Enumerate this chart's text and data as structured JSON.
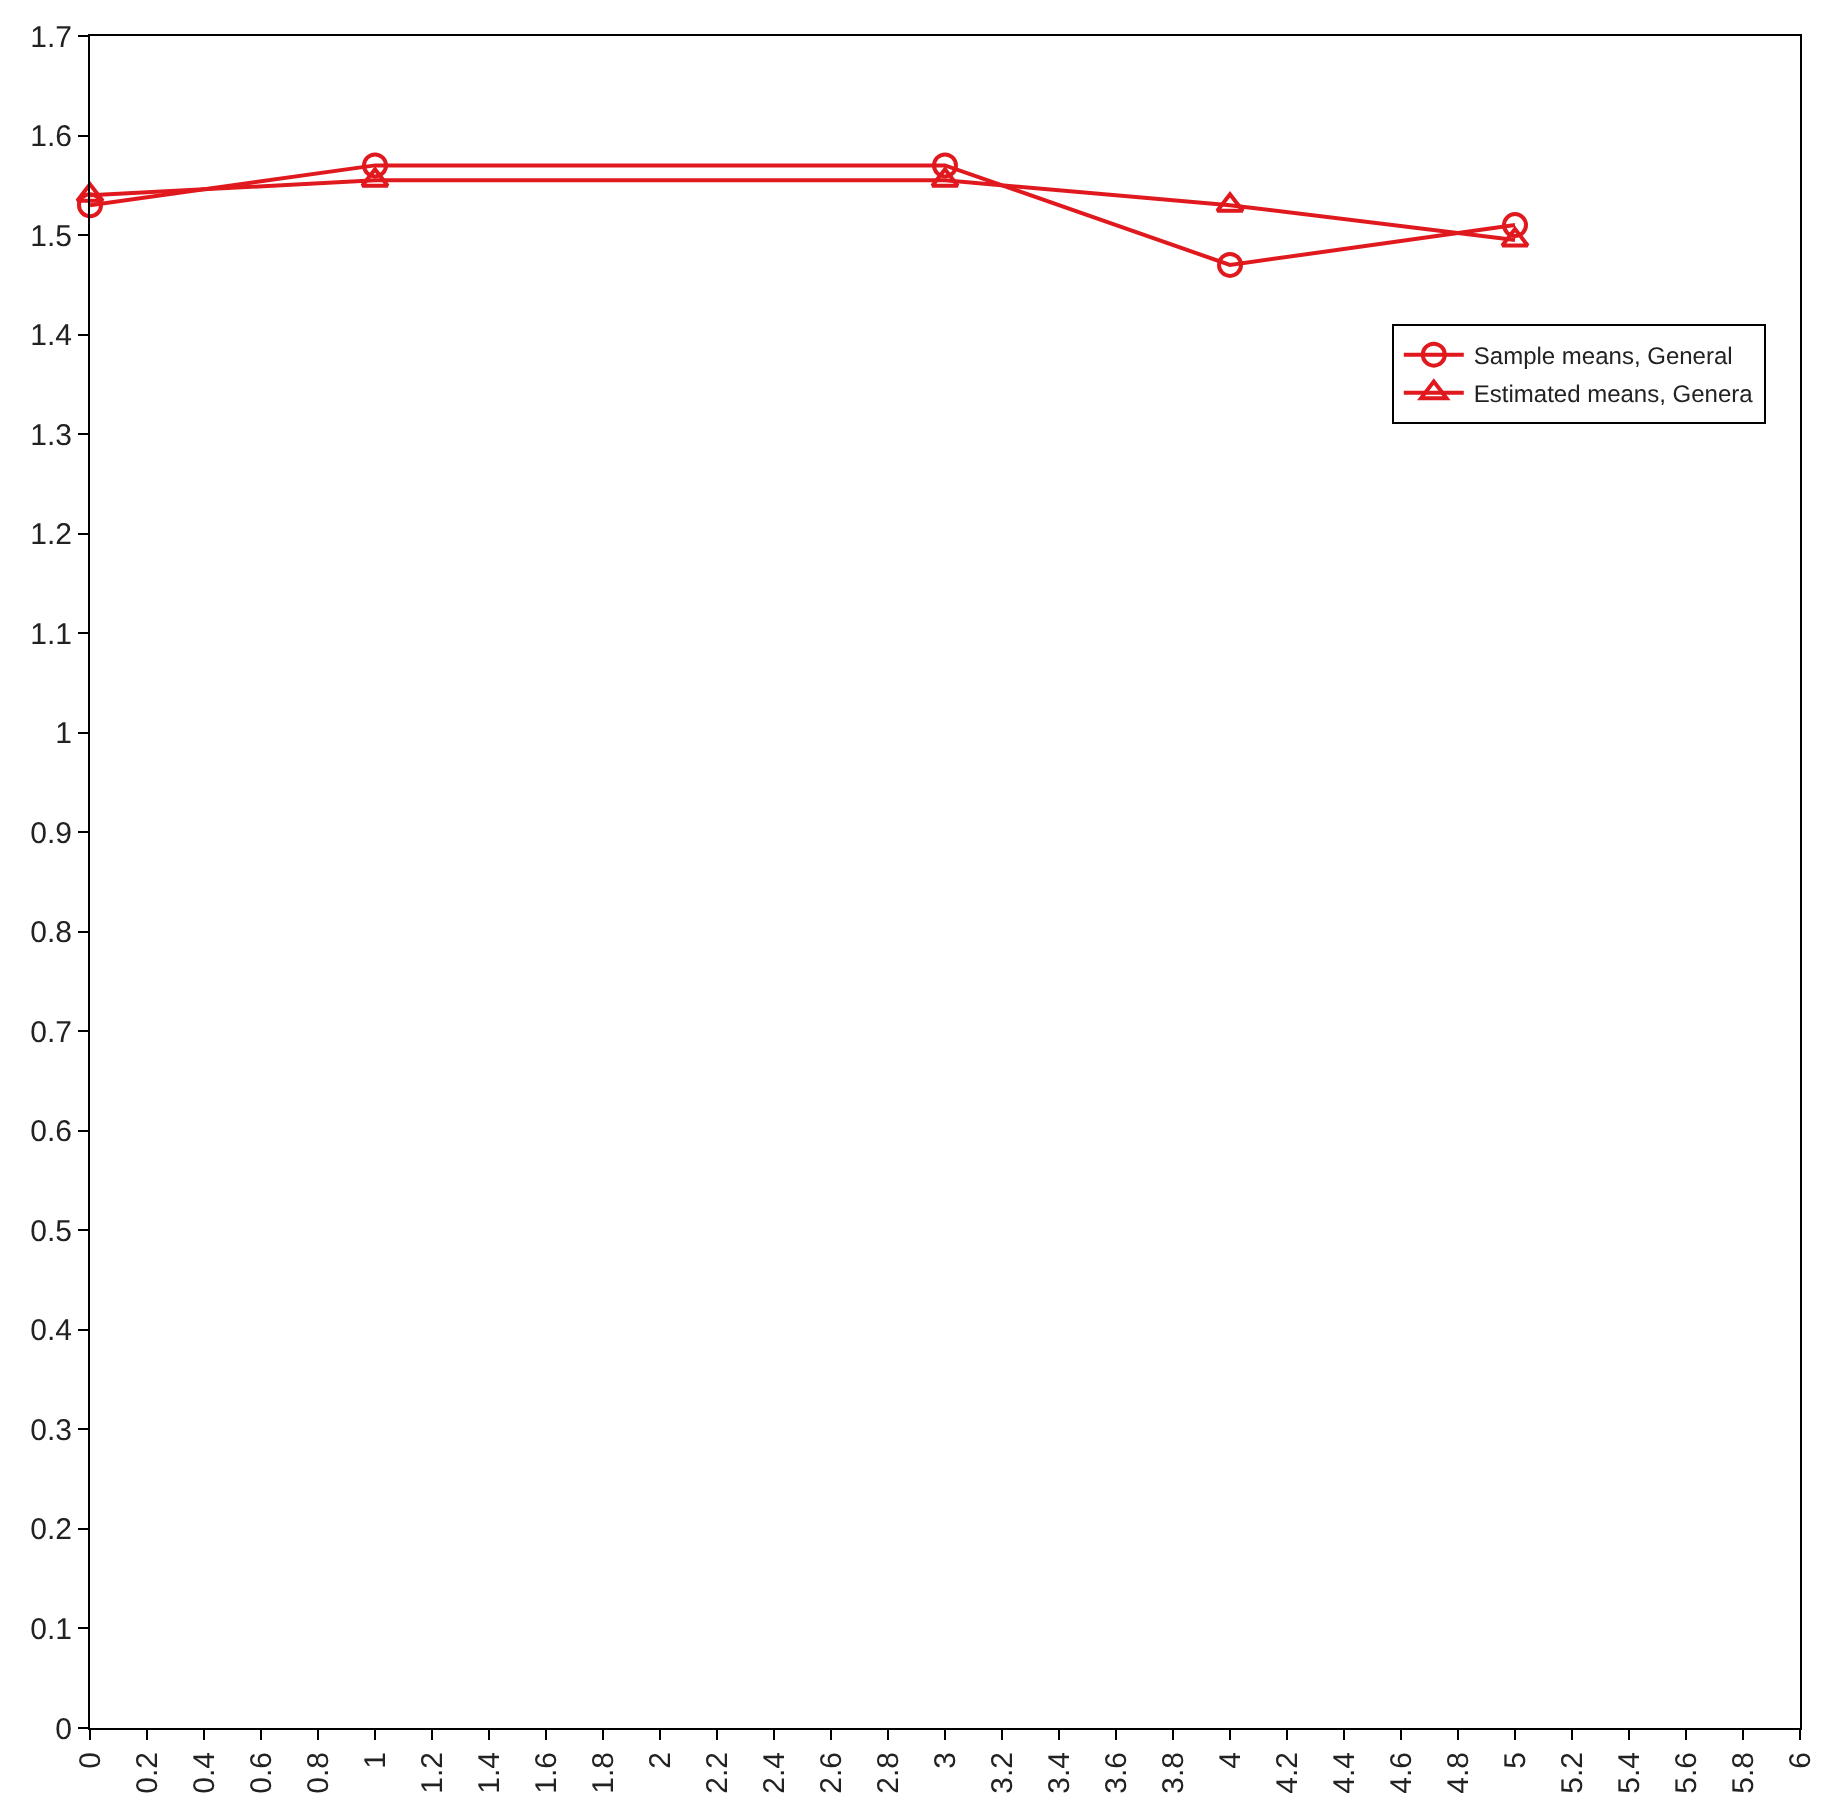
{
  "chart_data": {
    "type": "line",
    "x": [
      0,
      1,
      3,
      4,
      5
    ],
    "series": [
      {
        "name": "Sample means, General",
        "color": "#e0191e",
        "marker": "circle",
        "values": [
          1.53,
          1.57,
          1.57,
          1.47,
          1.51
        ]
      },
      {
        "name": "Estimated means, Genera",
        "color": "#e0191e",
        "marker": "triangle",
        "values": [
          1.54,
          1.555,
          1.555,
          1.53,
          1.495
        ]
      }
    ],
    "xlim": [
      0,
      6
    ],
    "xticks": [
      0,
      0.2,
      0.4,
      0.6,
      0.8,
      1,
      1.2,
      1.4,
      1.6,
      1.8,
      2,
      2.2,
      2.4,
      2.6,
      2.8,
      3,
      3.2,
      3.4,
      3.6,
      3.8,
      4,
      4.2,
      4.4,
      4.6,
      4.8,
      5,
      5.2,
      5.4,
      5.6,
      5.8,
      6
    ],
    "ylim": [
      0,
      1.7
    ],
    "yticks": [
      0,
      0.1,
      0.2,
      0.3,
      0.4,
      0.5,
      0.6,
      0.7,
      0.8,
      0.9,
      1,
      1.1,
      1.2,
      1.3,
      1.4,
      1.5,
      1.6,
      1.7
    ],
    "legend": "top right",
    "line_style": "solid"
  }
}
